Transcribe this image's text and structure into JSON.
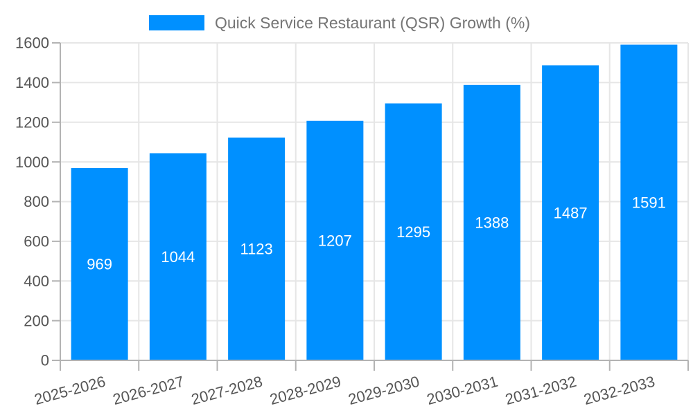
{
  "legend": {
    "label": "Quick Service Restaurant (QSR) Growth (%)"
  },
  "chart_data": {
    "type": "bar",
    "title": "Quick Service Restaurant (QSR) Growth (%)",
    "categories": [
      "2025-2026",
      "2026-2027",
      "2027-2028",
      "2028-2029",
      "2029-2030",
      "2030-2031",
      "2031-2032",
      "2032-2033"
    ],
    "series": [
      {
        "name": "Quick Service Restaurant (QSR) Growth (%)",
        "values": [
          969,
          1044,
          1123,
          1207,
          1295,
          1388,
          1487,
          1591
        ]
      }
    ],
    "bar_value_labels": [
      "969",
      "1044",
      "1123",
      "1207",
      "1295",
      "1388",
      "1487",
      "1591"
    ],
    "xlabel": "",
    "ylabel": "",
    "ylim": [
      0,
      1600
    ],
    "ytick_step": 200,
    "ytick_labels": [
      "0",
      "200",
      "400",
      "600",
      "800",
      "1000",
      "1200",
      "1400",
      "1600"
    ],
    "grid": true,
    "legend_position": "top",
    "x_label_rotation_deg": -15,
    "colors": {
      "bar": "#0090ff",
      "bar_label": "#ffffff",
      "axis_line": "#b3b3b3",
      "gridline": "#e6e6e6",
      "tick_label": "#555555",
      "legend_text": "#757575",
      "background": "#ffffff"
    }
  }
}
